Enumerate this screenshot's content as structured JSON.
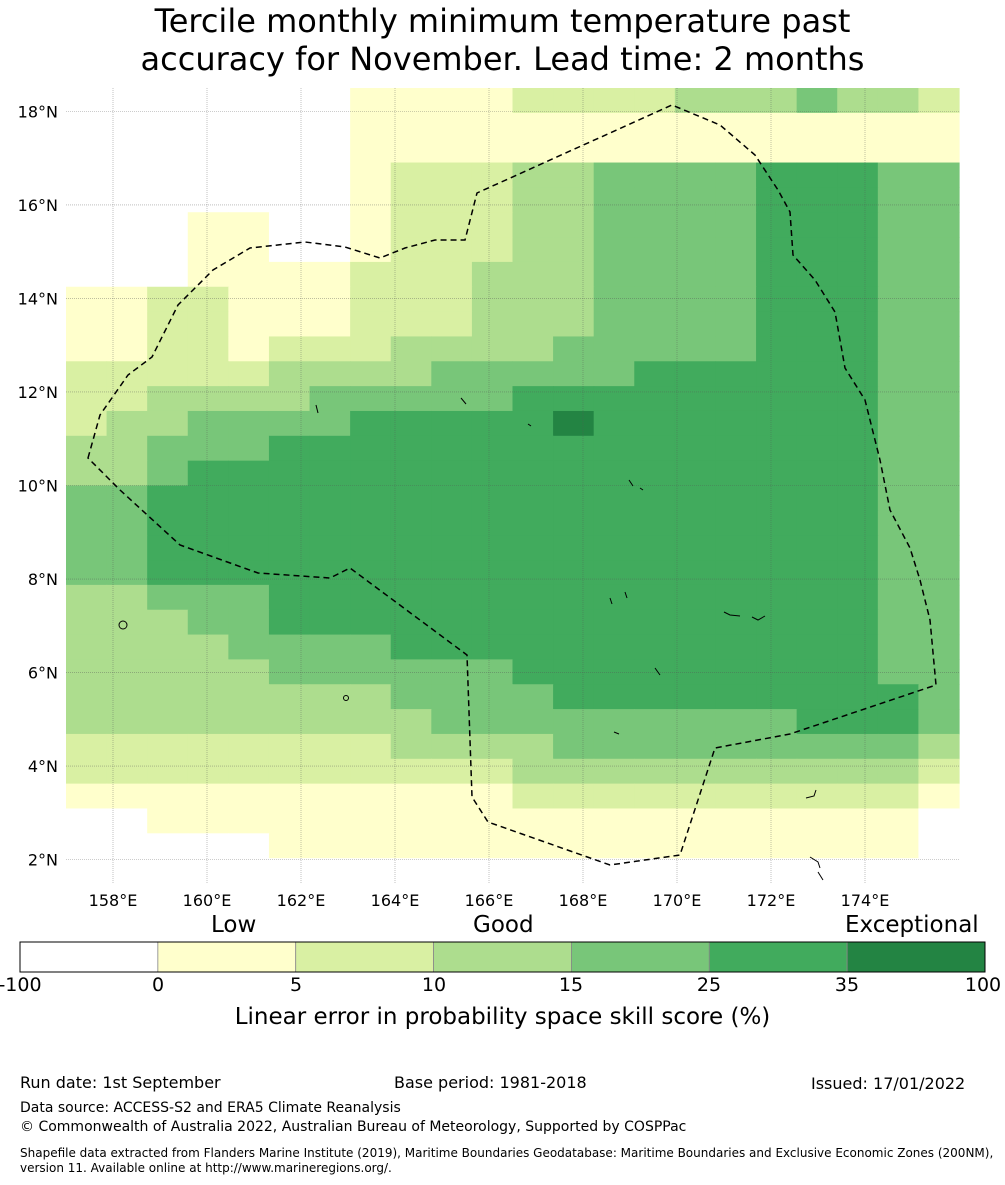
{
  "title": {
    "line1": "Tercile monthly minimum temperature past",
    "line2": "accuracy for November. Lead time: 2 months"
  },
  "map": {
    "lon_range": [
      157,
      176
    ],
    "lat_range": [
      1.5,
      18.5
    ],
    "x_ticks": [
      "158°E",
      "160°E",
      "162°E",
      "164°E",
      "166°E",
      "168°E",
      "170°E",
      "172°E",
      "174°E"
    ],
    "x_tick_values": [
      158,
      160,
      162,
      164,
      166,
      168,
      170,
      172,
      174
    ],
    "y_ticks": [
      "18°N",
      "16°N",
      "14°N",
      "12°N",
      "10°N",
      "8°N",
      "6°N",
      "4°N",
      "2°N"
    ],
    "y_tick_values": [
      18,
      16,
      14,
      12,
      10,
      8,
      6,
      4,
      2
    ],
    "grid": true,
    "boundary": "dashed EEZ outline",
    "skill_grid": {
      "cell_degrees": 0.8,
      "rows_top_to_bottom": [
        "0000000111122223334332",
        "0000000111111111111111",
        "0000000111111111111111",
        "0000000122233444455544",
        "0000000122233444455544",
        "0001100122233444455544",
        "0001100122233444455544",
        "0001111222333444455544",
        "1122111222333444455544",
        "1122111222333444455544",
        "1122122233334444455544",
        "2222233334444455555544",
        "2233334444455555555544",
        "2334444555556555555544",
        "3344455555555555555544",
        "3345555555555555555544",
        "4455555555555555555544",
        "4455555555555555555544",
        "4455555555555555555544",
        "4455555555555555555544",
        "3344455555555555555544",
        "3334455555555555555544",
        "3333444455555555555544",
        "3333344444455555555544",
        "3333333344445555555554",
        "3333333334444444445554",
        "2222222233334444444443",
        "2222222222233333333332",
        "1111111111122222222221",
        "0011111111111111111110",
        "0000011111111111111110",
        "0000000000000000000000"
      ]
    }
  },
  "colorbar": {
    "categories": [
      "Low",
      "Good",
      "Exceptional"
    ],
    "tick_labels": [
      "-100",
      "0",
      "5",
      "10",
      "15",
      "25",
      "35",
      "100"
    ],
    "colors": [
      "#ffffff",
      "#ffffcc",
      "#d9f0a3",
      "#addd8e",
      "#78c679",
      "#41ab5d",
      "#238443"
    ],
    "label": "Linear error in probability space skill score (%)"
  },
  "footer": {
    "run_date": "Run date: 1st September",
    "base_period": "Base period: 1981-2018",
    "issued": "Issued: 17/01/2022",
    "data_source": "Data source: ACCESS-S2 and ERA5 Climate Reanalysis",
    "copyright": "© Commonwealth of Australia 2022, Australian Bureau of Meteorology, Supported by COSPPac",
    "shapefile_line1": "Shapefile data extracted from Flanders Marine Institute (2019), Maritime Boundaries Geodatabase: Maritime Boundaries and Exclusive Economic Zones (200NM),",
    "shapefile_line2": "version 11. Available online at http://www.marineregions.org/."
  }
}
